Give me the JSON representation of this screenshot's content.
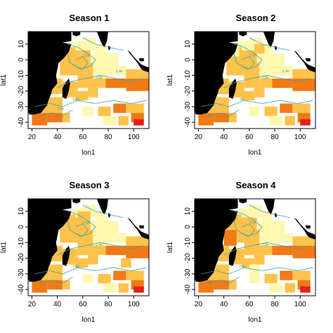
{
  "chart_data": [
    {
      "type": "heatmap",
      "title": "Season 1",
      "xlabel": "lon1",
      "ylabel": "lat1",
      "xlim": [
        17,
        112
      ],
      "ylim": [
        -44,
        18
      ],
      "xticks": [
        "20",
        "40",
        "60",
        "80",
        "100"
      ],
      "yticks": [
        "-40",
        "-30",
        "-20",
        "-10",
        "0",
        "10"
      ],
      "contour_labels": [
        "2.6e",
        "2.8e",
        "3.2e",
        "2.4e",
        "2.6e"
      ]
    },
    {
      "type": "heatmap",
      "title": "Season 2",
      "xlabel": "lon1",
      "ylabel": "lat1",
      "xlim": [
        17,
        112
      ],
      "ylim": [
        -44,
        18
      ],
      "xticks": [
        "20",
        "40",
        "60",
        "80",
        "100"
      ],
      "yticks": [
        "-40",
        "-30",
        "-20",
        "-10",
        "0",
        "10"
      ],
      "contour_labels": [
        "2.6e",
        "2.8e",
        "3e",
        "2.4e"
      ]
    },
    {
      "type": "heatmap",
      "title": "Season 3",
      "xlabel": "lon1",
      "ylabel": "lat1",
      "xlim": [
        17,
        112
      ],
      "ylim": [
        -44,
        18
      ],
      "xticks": [
        "20",
        "40",
        "60",
        "80",
        "100"
      ],
      "yticks": [
        "-40",
        "-30",
        "-20",
        "-10",
        "0",
        "10"
      ],
      "contour_labels": [
        "2.8e",
        "2.4e",
        "2.6e"
      ]
    },
    {
      "type": "heatmap",
      "title": "Season 4",
      "xlabel": "lon1",
      "ylabel": "lat1",
      "xlim": [
        17,
        112
      ],
      "ylim": [
        -44,
        18
      ],
      "xticks": [
        "20",
        "40",
        "60",
        "80",
        "100"
      ],
      "yticks": [
        "-40",
        "-30",
        "-20",
        "-10",
        "0",
        "10"
      ],
      "contour_labels": [
        "2.6e",
        "2.8e",
        "2.4e"
      ]
    }
  ],
  "colors": {
    "land": "#000000",
    "low": "#fff7b0",
    "mid": "#ffc24a",
    "high": "#f07a16",
    "max": "#e0201c",
    "contour": "#3aa0a8"
  }
}
